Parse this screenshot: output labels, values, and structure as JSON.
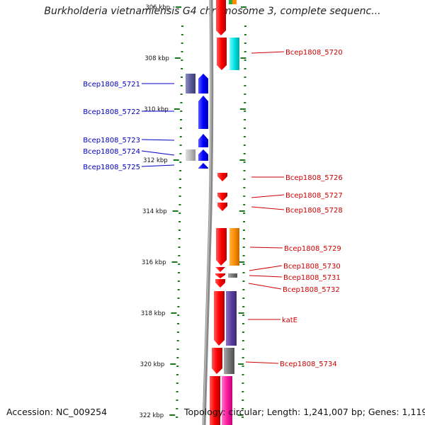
{
  "header": {
    "title": "Burkholderia vietnamiensis G4 chromosome 3, complete sequenc..."
  },
  "footer": {
    "accession": "Accession: NC_009254",
    "summary": "Topology: circular; Length: 1,241,007 bp; Genes: 1,119"
  },
  "map": {
    "ruler": {
      "ticks": [
        {
          "label": "306 kbp",
          "kbp": 306
        },
        {
          "label": "308 kbp",
          "kbp": 308
        },
        {
          "label": "310 kbp",
          "kbp": 310
        },
        {
          "label": "312 kbp",
          "kbp": 312
        },
        {
          "label": "314 kbp",
          "kbp": 314
        },
        {
          "label": "316 kbp",
          "kbp": 316
        },
        {
          "label": "318 kbp",
          "kbp": 318
        },
        {
          "label": "320 kbp",
          "kbp": 320
        },
        {
          "label": "322 kbp",
          "kbp": 322
        }
      ]
    },
    "genes_left": [
      {
        "label": "Bcep1808_5721",
        "color": "#0000ee"
      },
      {
        "label": "Bcep1808_5722",
        "color": "#0000ee"
      },
      {
        "label": "Bcep1808_5723",
        "color": "#0000ee"
      },
      {
        "label": "Bcep1808_5724",
        "color": "#0000ee"
      },
      {
        "label": "Bcep1808_5725",
        "color": "#0000ee"
      }
    ],
    "genes_right": [
      {
        "label": "Bcep1808_5720",
        "color": "#dd0000"
      },
      {
        "label": "Bcep1808_5726",
        "color": "#dd0000"
      },
      {
        "label": "Bcep1808_5727",
        "color": "#dd0000"
      },
      {
        "label": "Bcep1808_5728",
        "color": "#dd0000"
      },
      {
        "label": "Bcep1808_5729",
        "color": "#dd0000"
      },
      {
        "label": "Bcep1808_5730",
        "color": "#dd0000"
      },
      {
        "label": "Bcep1808_5731",
        "color": "#dd0000"
      },
      {
        "label": "Bcep1808_5732",
        "color": "#dd0000"
      },
      {
        "label": "katE",
        "color": "#dd0000"
      },
      {
        "label": "Bcep1808_5734",
        "color": "#dd0000"
      }
    ],
    "colors": {
      "forward_strand": "#ff0000",
      "reverse_strand": "#0000ff",
      "backbone": "#888888",
      "ruler_tick": "#1a7a1a",
      "cog_cyan": "#00e5e5",
      "cog_orange": "#ff8c00",
      "cog_purple": "#5a3fa0",
      "cog_gray": "#777777",
      "cog_magenta": "#ff1aa0",
      "cog_slate": "#5c5c9a"
    }
  }
}
